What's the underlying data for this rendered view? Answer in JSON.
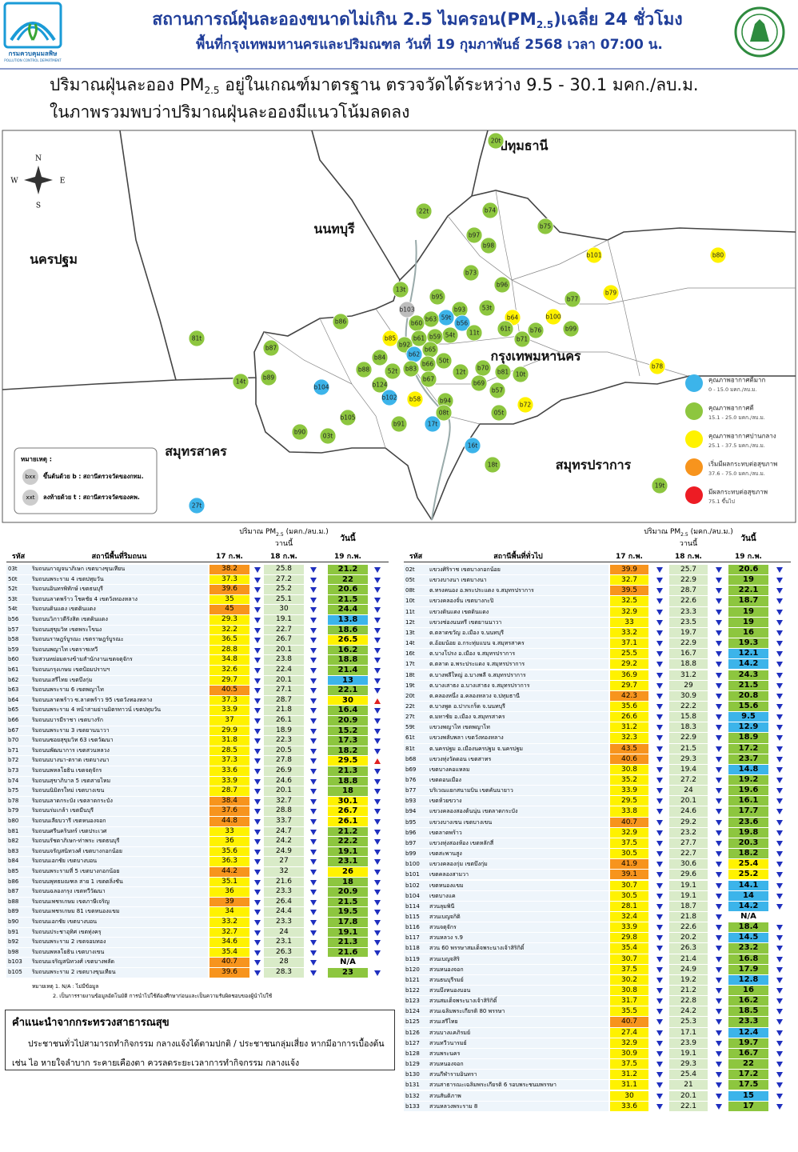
{
  "header": {
    "title": [
      "สถานการณ์ฝุ่นละอองขนาดไม่เกิน 2.5 ไมครอน(PM",
      "2.5",
      ")เฉลี่ย 24 ชั่วโมง"
    ],
    "subtitle": "พื้นที่กรุงเทพมหานครและปริมณฑล วันที่ 19 กุมภาพันธ์ 2568 เวลา 07:00 น.",
    "logo_name": "กรมควบคุมมลพิษ",
    "logo_en": "POLLUTION CONTROL DEPARTMENT"
  },
  "summary": {
    "line1": [
      "ปริมาณฝุ่นละออง PM",
      "2.5",
      " อยู่ในเกณฑ์มาตรฐาน ตรวจวัดได้ระหว่าง 9.5 - 30.1 มคก./ลบ.ม."
    ],
    "line2": "ในภาพรวมพบว่าปริมาณฝุ่นละอองมีแนวโน้มลดลง"
  },
  "map": {
    "compass": [
      "N",
      "W",
      "E",
      "S"
    ],
    "provinces": [
      "ปทุมธานี",
      "นนทบุรี",
      "นครปฐม",
      "กรุงเทพมหานคร",
      "สมุทรสาคร",
      "สมุทรปราการ"
    ],
    "stations": [
      {
        "code": "20t",
        "color": "#8dc63f"
      },
      {
        "code": "22t",
        "color": "#8dc63f"
      },
      {
        "code": "b74",
        "color": "#8dc63f"
      },
      {
        "code": "b75",
        "color": "#8dc63f"
      },
      {
        "code": "b97",
        "color": "#8dc63f"
      },
      {
        "code": "b98",
        "color": "#8dc63f"
      },
      {
        "code": "b101",
        "color": "#fff200"
      },
      {
        "code": "b80",
        "color": "#fff200"
      },
      {
        "code": "b73",
        "color": "#8dc63f"
      },
      {
        "code": "b96",
        "color": "#8dc63f"
      },
      {
        "code": "b79",
        "color": "#fff200"
      },
      {
        "code": "13t",
        "color": "#8dc63f"
      },
      {
        "code": "b95",
        "color": "#8dc63f"
      },
      {
        "code": "b77",
        "color": "#8dc63f"
      },
      {
        "code": "b103",
        "color": "#bdbdbd"
      },
      {
        "code": "b93",
        "color": "#8dc63f"
      },
      {
        "code": "53t",
        "color": "#8dc63f"
      },
      {
        "code": "b100",
        "color": "#fff200"
      },
      {
        "code": "59t",
        "color": "#3cb4ea"
      },
      {
        "code": "b56",
        "color": "#3cb4ea"
      },
      {
        "code": "b64",
        "color": "#fff200"
      },
      {
        "code": "b86",
        "color": "#8dc63f"
      },
      {
        "code": "b63",
        "color": "#8dc63f"
      },
      {
        "code": "b60",
        "color": "#8dc63f"
      },
      {
        "code": "b76",
        "color": "#8dc63f"
      },
      {
        "code": "b99",
        "color": "#8dc63f"
      },
      {
        "code": "61t",
        "color": "#8dc63f"
      },
      {
        "code": "11t",
        "color": "#8dc63f"
      },
      {
        "code": "54t",
        "color": "#8dc63f"
      },
      {
        "code": "b61",
        "color": "#8dc63f"
      },
      {
        "code": "b59",
        "color": "#8dc63f"
      },
      {
        "code": "b71",
        "color": "#8dc63f"
      },
      {
        "code": "81t",
        "color": "#8dc63f"
      },
      {
        "code": "b85",
        "color": "#fff200"
      },
      {
        "code": "b92",
        "color": "#8dc63f"
      },
      {
        "code": "b87",
        "color": "#8dc63f"
      },
      {
        "code": "b65",
        "color": "#8dc63f"
      },
      {
        "code": "b62",
        "color": "#3cb4ea"
      },
      {
        "code": "b84",
        "color": "#8dc63f"
      },
      {
        "code": "50t",
        "color": "#8dc63f"
      },
      {
        "code": "b66",
        "color": "#8dc63f"
      },
      {
        "code": "b70",
        "color": "#8dc63f"
      },
      {
        "code": "b88",
        "color": "#8dc63f"
      },
      {
        "code": "52t",
        "color": "#8dc63f"
      },
      {
        "code": "b83",
        "color": "#8dc63f"
      },
      {
        "code": "12t",
        "color": "#8dc63f"
      },
      {
        "code": "b81",
        "color": "#8dc63f"
      },
      {
        "code": "10t",
        "color": "#8dc63f"
      },
      {
        "code": "b89",
        "color": "#8dc63f"
      },
      {
        "code": "b67",
        "color": "#8dc63f"
      },
      {
        "code": "14t",
        "color": "#8dc63f"
      },
      {
        "code": "b124",
        "color": "#8dc63f"
      },
      {
        "code": "b69",
        "color": "#8dc63f"
      },
      {
        "code": "b57",
        "color": "#8dc63f"
      },
      {
        "code": "b78",
        "color": "#fff200"
      },
      {
        "code": "b104",
        "color": "#3cb4ea"
      },
      {
        "code": "b102",
        "color": "#3cb4ea"
      },
      {
        "code": "b58",
        "color": "#fff200"
      },
      {
        "code": "b94",
        "color": "#8dc63f"
      },
      {
        "code": "b72",
        "color": "#fff200"
      },
      {
        "code": "08t",
        "color": "#8dc63f"
      },
      {
        "code": "05t",
        "color": "#8dc63f"
      },
      {
        "code": "b91",
        "color": "#8dc63f"
      },
      {
        "code": "17t",
        "color": "#3cb4ea"
      },
      {
        "code": "b105",
        "color": "#8dc63f"
      },
      {
        "code": "b90",
        "color": "#8dc63f"
      },
      {
        "code": "03t",
        "color": "#8dc63f"
      },
      {
        "code": "16t",
        "color": "#3cb4ea"
      },
      {
        "code": "18t",
        "color": "#8dc63f"
      },
      {
        "code": "19t",
        "color": "#8dc63f"
      },
      {
        "code": "27t",
        "color": "#3cb4ea"
      }
    ],
    "legend": [
      {
        "label": "คุณภาพอากาศดีมาก",
        "range": "0 - 15.0 มคก./ลบ.ม.",
        "min": 0,
        "max": 15.0,
        "color": "#3cb4ea"
      },
      {
        "label": "คุณภาพอากาศดี",
        "range": "15.1 - 25.0 มคก./ลบ.ม.",
        "min": 15.1,
        "max": 25.0,
        "color": "#8dc63f"
      },
      {
        "label": "คุณภาพอากาศปานกลาง",
        "range": "25.1 - 37.5 มคก./ลบ.ม.",
        "min": 25.1,
        "max": 37.5,
        "color": "#fff200"
      },
      {
        "label": "เริ่มมีผลกระทบต่อสุขภาพ",
        "range": "37.6 - 75.0 มคก./ลบ.ม.",
        "min": 37.6,
        "max": 75.0,
        "color": "#f7941d"
      },
      {
        "label": "มีผลกระทบต่อสุขภาพ",
        "range": "75.1 ขึ้นไป",
        "min": 75.1,
        "color": "#ed1c24"
      }
    ],
    "note": {
      "title": "หมายเหตุ :",
      "items": [
        {
          "icon": "bxx",
          "text": "ขึ้นต้นด้วย b : สถานีตรวจวัดของกทม."
        },
        {
          "icon": "xxt",
          "text": "ลงท้ายด้วย t : สถานีตรวจวัดของคพ."
        }
      ]
    }
  },
  "tables": [
    {
      "unit": [
        "ปริมาณ PM",
        "2.5",
        " (มคก./ลบ.ม.)"
      ],
      "yesterday": "วานนี้",
      "today": "วันนี้",
      "columns": [
        "รหัส",
        "สถานีพื้นที่ริมถนน",
        "17 ก.พ.",
        "18 ก.พ.",
        "19 ก.พ."
      ],
      "rows": [
        [
          "03t",
          "ริมถนนกาญจนาภิเษก เขตบางขุนเทียน",
          38.2,
          25.8,
          21.2
        ],
        [
          "50t",
          "ริมถนนพระราม 4 เขตปทุมวัน",
          37.3,
          27.2,
          22.0
        ],
        [
          "52t",
          "ริมถนนอินทรพิทักษ์ เขตธนบุรี",
          39.6,
          25.2,
          20.6
        ],
        [
          "53t",
          "ริมถนนลาดพร้าว โชคชัย 4 เขตวังทองหลาง",
          35.0,
          25.1,
          21.5
        ],
        [
          "54t",
          "ริมถนนดินแดง เขตดินแดง",
          45.0,
          30.0,
          24.4
        ],
        [
          "b56",
          "ริมถนนวิภาวดีรังสิต เขตดินแดง",
          29.3,
          19.1,
          13.8
        ],
        [
          "b57",
          "ริมถนนสุขุมวิท เขตพระโขนง",
          32.2,
          22.7,
          18.6
        ],
        [
          "b58",
          "ริมถนนราษฎร์บูรณะ เขตราษฎร์บูรณะ",
          36.5,
          26.7,
          26.5
        ],
        [
          "b59",
          "ริมถนนพญาไท เขตราชเทวี",
          28.8,
          20.1,
          16.2
        ],
        [
          "b60",
          "ริมสวนหย่อมตรงข้ามสำนักงานเขตจตุจักร",
          34.8,
          23.8,
          18.8
        ],
        [
          "b61",
          "ริมถนนกรุงเกษม เขตป้อมปราบฯ",
          32.6,
          22.4,
          21.4
        ],
        [
          "b62",
          "ริมถนนเสรีไทย เขตบึงกุ่ม",
          29.7,
          20.1,
          13.0
        ],
        [
          "b63",
          "ริมถนนพระราม 6 เขตพญาไท",
          40.5,
          27.1,
          22.1
        ],
        [
          "b64",
          "ริมถนนลาดพร้าว ซ.ลาดพร้าว 95 เขตวังทองหลาง",
          37.3,
          28.7,
          30.0
        ],
        [
          "b65",
          "ริมถนนพระราม 4 หน้าสามย่านมิตรทาวน์ เขตปทุมวัน",
          33.9,
          21.8,
          16.4
        ],
        [
          "b66",
          "ริมถนนบารมีราชา เขตบางรัก",
          37.0,
          26.1,
          20.9
        ],
        [
          "b67",
          "ริมถนนพระราม 3 เขตยานนาวา",
          29.9,
          18.9,
          15.2
        ],
        [
          "b70",
          "ริมถนนซอยสุขุมวิท 63 เขตวัฒนา",
          31.8,
          22.3,
          17.3
        ],
        [
          "b71",
          "ริมถนนพัฒนาการ เขตสวนหลวง",
          28.5,
          20.5,
          18.2
        ],
        [
          "b72",
          "ริมถนนบางนา-ตราด เขตบางนา",
          37.3,
          27.8,
          29.5
        ],
        [
          "b73",
          "ริมถนนพหลโยธิน เขตจตุจักร",
          33.6,
          26.9,
          21.3
        ],
        [
          "b74",
          "ริมถนนสุขาภิบาล 5 เขตสายไหม",
          33.9,
          24.6,
          18.8
        ],
        [
          "b75",
          "ริมถนนนิมิตรใหม่ เขตบางเขน",
          28.7,
          20.1,
          18.0
        ],
        [
          "b78",
          "ริมถนนลาดกระบัง เขตลาดกระบัง",
          38.4,
          32.7,
          30.1
        ],
        [
          "b79",
          "ริมถนนร่มเกล้า เขตมีนบุรี",
          37.6,
          28.8,
          26.7
        ],
        [
          "b80",
          "ริมถนนเลียบวารี เขตหนองจอก",
          44.8,
          33.7,
          26.1
        ],
        [
          "b81",
          "ริมถนนศรีนครินทร์ เขตประเวศ",
          33.0,
          24.7,
          21.2
        ],
        [
          "b82",
          "ริมถนนรัชดาภิเษก-ท่าพระ เขตธนบุรี",
          36.0,
          24.2,
          22.2
        ],
        [
          "b83",
          "ริมถนนจรัญสนิทวงศ์ เขตบางกอกน้อย",
          35.6,
          24.9,
          19.1
        ],
        [
          "b84",
          "ริมถนนเอกชัย เขตบางบอน",
          36.3,
          27.0,
          23.1
        ],
        [
          "b85",
          "ริมถนนพระรามที่ 5 เขตบางกอกน้อย",
          44.2,
          32.0,
          26.0
        ],
        [
          "b86",
          "ริมถนนพุทธมณฑล สาย 1 เขตตลิ่งชัน",
          35.1,
          21.6,
          18.0
        ],
        [
          "b87",
          "ริมถนนฉลองกรุง เขตทวีวัฒนา",
          36.0,
          23.3,
          20.9
        ],
        [
          "b88",
          "ริมถนนเพชรเกษม เขตภาษีเจริญ",
          39.0,
          26.4,
          21.5
        ],
        [
          "b89",
          "ริมถนนเพชรเกษม 81 เขตหนองแขม",
          34.0,
          24.4,
          19.5
        ],
        [
          "b90",
          "ริมถนนเอกชัย เขตบางบอน",
          33.2,
          23.3,
          17.8
        ],
        [
          "b91",
          "ริมถนนประชาอุทิศ เขตทุ่งครุ",
          32.7,
          24.0,
          19.1
        ],
        [
          "b92",
          "ริมถนนพระราม 2 เขตจอมทอง",
          34.6,
          23.1,
          21.3
        ],
        [
          "b98",
          "ริมถนนพหลโยธิน เขตบางเขน",
          35.4,
          26.3,
          21.6
        ],
        [
          "b103",
          "ริมถนนเจริญสนิทวงศ์ เขตบางพลัด",
          40.7,
          28.0,
          "N/A"
        ],
        [
          "b105",
          "ริมถนนพระราม 2 เขตบางขุนเทียน",
          39.6,
          28.3,
          23.0
        ]
      ]
    },
    {
      "unit": [
        "ปริมาณ PM",
        "2.5",
        " (มคก./ลบ.ม.)"
      ],
      "yesterday": "วานนี้",
      "today": "วันนี้",
      "columns": [
        "รหัส",
        "สถานีพื้นที่ทั่วไป",
        "17 ก.พ.",
        "18 ก.พ.",
        "19 ก.พ."
      ],
      "rows": [
        [
          "02t",
          "แขวงศิริราช เขตบางกอกน้อย",
          39.9,
          25.7,
          20.6
        ],
        [
          "05t",
          "แขวงบางนา เขตบางนา",
          32.7,
          22.9,
          19.0
        ],
        [
          "08t",
          "ต.ทรงคนอง อ.พระประแดง จ.สมุทรปราการ",
          39.5,
          28.7,
          22.1
        ],
        [
          "10t",
          "แขวงคลองจั่น เขตบางกะปิ",
          32.5,
          22.6,
          18.7
        ],
        [
          "11t",
          "แขวงดินแดง เขตดินแดง",
          32.9,
          23.3,
          19.0
        ],
        [
          "12t",
          "แขวงช่องนนทรี เขตยานนาวา",
          33.0,
          23.5,
          19.0
        ],
        [
          "13t",
          "ต.ตลาดขวัญ อ.เมือง จ.นนทบุรี",
          33.2,
          19.7,
          16.0
        ],
        [
          "14t",
          "ต.อ้อมน้อย อ.กระทุ่มแบน จ.สมุทรสาคร",
          37.1,
          22.9,
          19.3
        ],
        [
          "16t",
          "ต.บางโปรง อ.เมือง จ.สมุทรปราการ",
          25.5,
          16.7,
          12.1
        ],
        [
          "17t",
          "ต.ตลาด อ.พระประแดง จ.สมุทรปราการ",
          29.2,
          18.8,
          14.2
        ],
        [
          "18t",
          "ต.บางพลีใหญ่ อ.บางพลี จ.สมุทรปราการ",
          36.9,
          31.2,
          24.3
        ],
        [
          "19t",
          "ต.บางเสาธง อ.บางเสาธง จ.สมุทรปราการ",
          29.7,
          29.0,
          21.5
        ],
        [
          "20t",
          "ต.คลองหนึ่ง อ.คลองหลวง จ.ปทุมธานี",
          42.3,
          30.9,
          20.8
        ],
        [
          "22t",
          "ต.บางพูด อ.ปากเกร็ด จ.นนทบุรี",
          35.6,
          22.2,
          15.6
        ],
        [
          "27t",
          "ต.มหาชัย อ.เมือง จ.สมุทรสาคร",
          26.6,
          15.8,
          9.5
        ],
        [
          "59t",
          "แขวงพญาไท เขตพญาไท",
          31.2,
          18.3,
          12.9
        ],
        [
          "61t",
          "แขวงพลับพลา เขตวังทองหลาง",
          32.3,
          22.9,
          18.9
        ],
        [
          "81t",
          "ต.นครปฐม อ.เมืองนครปฐม จ.นครปฐม",
          43.5,
          21.5,
          17.2
        ],
        [
          "b68",
          "แขวงทุ่งวัดดอน เขตสาทร",
          40.6,
          29.3,
          23.7
        ],
        [
          "b69",
          "เขตบางคอแหลม",
          30.8,
          19.4,
          14.8
        ],
        [
          "b76",
          "เขตดอนเมือง",
          35.2,
          27.2,
          19.2
        ],
        [
          "b77",
          "บริเวณแยกสนามบิน เขตคันนายาว",
          33.9,
          24.0,
          19.6
        ],
        [
          "b93",
          "เขตห้วยขวาง",
          29.5,
          20.1,
          16.1
        ],
        [
          "b94",
          "แขวงคลองสองต้นนุ่น เขตลาดกระบัง",
          33.8,
          24.6,
          17.7
        ],
        [
          "b95",
          "แขวงบางเขน เขตบางเขน",
          40.7,
          29.2,
          23.6
        ],
        [
          "b96",
          "เขตลาดพร้าว",
          32.9,
          23.2,
          19.8
        ],
        [
          "b97",
          "แขวงทุ่งสองห้อง เขตหลักสี่",
          37.5,
          27.7,
          20.3
        ],
        [
          "b99",
          "เขตสะพานสูง",
          30.5,
          22.7,
          18.2
        ],
        [
          "b100",
          "แขวงคลองกุ่ม เขตบึงกุ่ม",
          41.9,
          30.6,
          25.4
        ],
        [
          "b101",
          "เขตคลองสามวา",
          39.1,
          29.6,
          25.2
        ],
        [
          "b102",
          "เขตหนองแขม",
          30.7,
          19.1,
          14.1
        ],
        [
          "b104",
          "เขตบางแค",
          30.5,
          19.1,
          14.0
        ],
        [
          "b114",
          "สวนลุมพินี",
          28.1,
          18.7,
          14.2
        ],
        [
          "b115",
          "สวนเบญจกิติ",
          32.4,
          21.8,
          "N/A"
        ],
        [
          "b116",
          "สวนจตุจักร",
          33.9,
          22.6,
          18.4
        ],
        [
          "b117",
          "สวนหลวง ร.9",
          29.8,
          20.2,
          14.5
        ],
        [
          "b118",
          "สวน 60 พรรษาสมเด็จพระนางเจ้าสิริกิติ์",
          35.4,
          26.3,
          23.2
        ],
        [
          "b119",
          "สวนเบญจสิริ",
          30.7,
          21.4,
          16.8
        ],
        [
          "b120",
          "สวนหนองจอก",
          37.5,
          24.9,
          17.9
        ],
        [
          "b121",
          "สวนธนบุรีรมย์",
          30.2,
          19.2,
          12.8
        ],
        [
          "b122",
          "สวนบึงหนองบอน",
          30.8,
          21.2,
          16.0
        ],
        [
          "b123",
          "สวนสมเด็จพระนางเจ้าสิริกิติ์",
          31.7,
          22.8,
          16.2
        ],
        [
          "b124",
          "สวนเฉลิมพระเกียรติ 80 พรรษา",
          35.5,
          24.2,
          18.5
        ],
        [
          "b125",
          "สวนเสรีไทย",
          40.7,
          25.3,
          23.3
        ],
        [
          "b126",
          "สวนบางแคภิรมย์",
          27.4,
          17.1,
          12.4
        ],
        [
          "b127",
          "สวนทวีวนารมย์",
          32.9,
          23.9,
          19.7
        ],
        [
          "b128",
          "สวนพระนคร",
          30.9,
          19.1,
          16.7
        ],
        [
          "b129",
          "สวนหนองจอก",
          37.5,
          29.3,
          22.0
        ],
        [
          "b130",
          "สวนกีฬารามอินทรา",
          31.2,
          25.4,
          17.2
        ],
        [
          "b131",
          "สวนสาธารณะเฉลิมพระเกียรติ 6 รอบพระชนมพรรษา",
          31.1,
          21.0,
          17.5
        ],
        [
          "b132",
          "สวนสันติภาพ",
          30.0,
          20.1,
          15.0
        ],
        [
          "b133",
          "สวนหลวงพระราม 8",
          33.6,
          22.1,
          17.0
        ]
      ]
    }
  ],
  "footnote": [
    "หมายเหตุ 1. N/A : ไม่มีข้อมูล",
    "2. เป็นการรายงานข้อมูลอัตโนมัติ การนำไปใช้ต้องศึกษาก่อนและเป็นความรับผิดชอบของผู้นำไปใช้"
  ],
  "advice": {
    "title": "คำแนะนำจากกระทรวงสาธารณสุข",
    "lines": [
      "ประชาชนทั่วไปสามารถทำกิจกรรม กลางแจ้งได้ตามปกติ / ประชาชนกลุ่มเสี่ยง หากมีอาการเบื้องต้น",
      "เช่น ไอ หายใจลำบาก ระคายเคืองตา ควรลดระยะเวลาการทำกิจกรรม กลางแจ้ง"
    ]
  }
}
